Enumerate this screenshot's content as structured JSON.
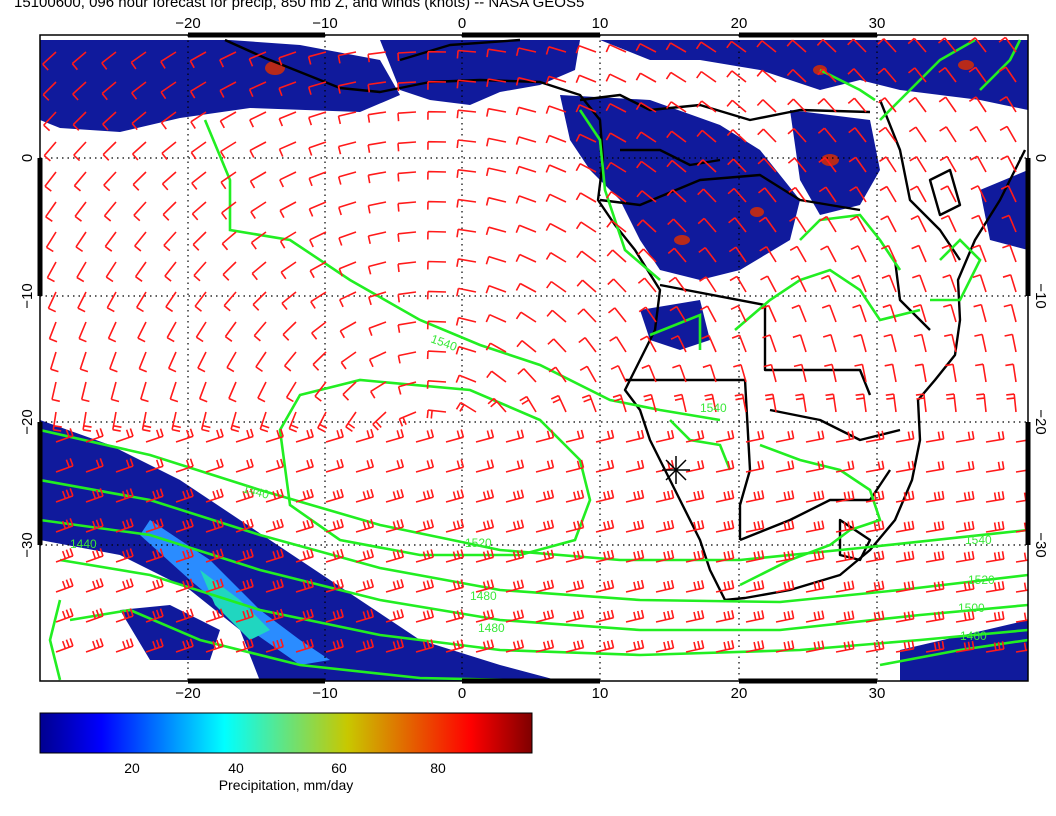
{
  "title": "15100600, 096 hour forecast for precip, 850 mb Z, and winds (knots) -- NASA GEOS5",
  "map": {
    "lon_range": [
      -31,
      40
    ],
    "lat_range": [
      -37,
      9.5
    ],
    "lon_ticks": [
      -20,
      -10,
      0,
      10,
      20,
      30
    ],
    "lat_ticks": [
      0,
      -10,
      -20,
      -30
    ],
    "lon_tick_labels": [
      "−20",
      "−10",
      "0",
      "10",
      "20",
      "30"
    ],
    "lat_tick_labels": [
      "0",
      "−10",
      "−20",
      "−30"
    ],
    "gridlines": "dotted"
  },
  "colorbar": {
    "label": "Precipitation, mm/day",
    "range": [
      0,
      100
    ],
    "ticks": [
      20,
      40,
      60,
      80
    ],
    "tick_labels": [
      "20",
      "40",
      "60",
      "80"
    ]
  },
  "contours": {
    "color": "#22ee22",
    "labels": [
      "1540",
      "1520",
      "1500",
      "1480",
      "1460",
      "1440"
    ]
  },
  "colors": {
    "wind_barbs": "#ff0000",
    "contours": "#22ee22",
    "coastlines": "#000000",
    "precip_low": "#00008f",
    "precip_high": "#7f0000"
  }
}
